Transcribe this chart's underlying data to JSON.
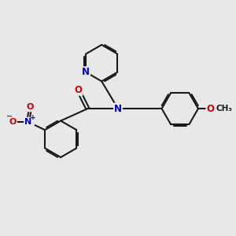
{
  "bg_color": "#e8e8e8",
  "bond_color": "#1a1a1a",
  "bond_width": 1.5,
  "atom_colors": {
    "N": "#0000cc",
    "O": "#cc0000",
    "C": "#1a1a1a"
  },
  "font_size_atoms": 8.5
}
